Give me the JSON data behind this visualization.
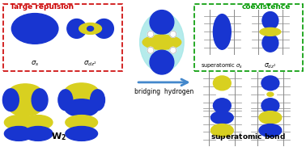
{
  "bg_color": "#ffffff",
  "red_box_label": "large repulsion",
  "red_box_color": "#cc0000",
  "green_box_label": "coexistence",
  "green_box_color": "#009900",
  "arrow_text": "bridging  hydrogen",
  "w2_label": "W$_2$",
  "right_label": "superatomic  bond",
  "sigma_s": "$\\sigma_s$",
  "sigma_dz2": "$\\sigma_{dz^2}$",
  "super_sigma_s": "superatomic $\\sigma_s$",
  "super_sigma_dz2": "$\\sigma_{dz^2}$",
  "blue": "#1835d0",
  "yellow": "#d8d020",
  "cyan_bg": "#a8e8e8",
  "arrow_blue": "#4488cc"
}
